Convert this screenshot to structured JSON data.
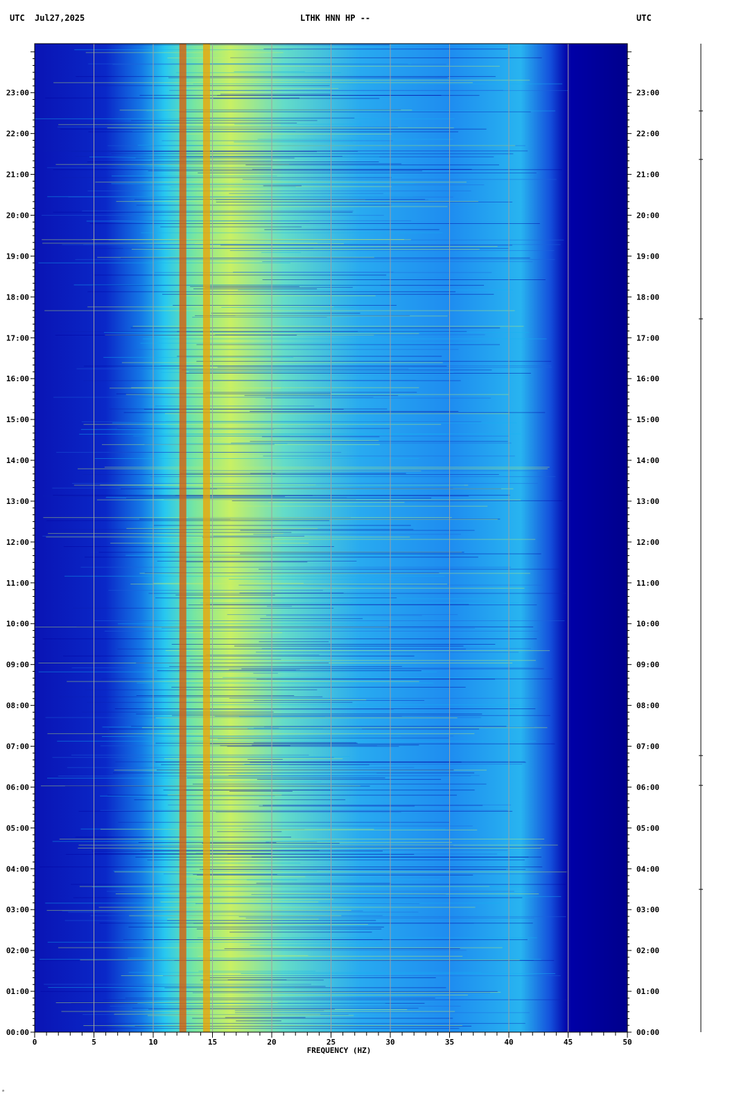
{
  "header": {
    "utc_left": "UTC",
    "date": "Jul27,2025",
    "station": "LTHK HNN HP --",
    "utc_right": "UTC"
  },
  "footer_mark": "ᵃ",
  "colors": {
    "background_low": "#00008c",
    "mid": "#00c8ff",
    "high": "#ffe000",
    "peak": "#d00000",
    "gridline": "#a0a0a0"
  },
  "chart_data": {
    "type": "heatmap",
    "title": "LTHK HNN HP --",
    "xlabel": "FREQUENCY (HZ)",
    "ylabel": "UTC",
    "xlim": [
      0,
      50
    ],
    "ylim_hours": [
      0,
      24
    ],
    "x_ticks": [
      "0",
      "5",
      "10",
      "15",
      "20",
      "25",
      "30",
      "35",
      "40",
      "45",
      "50"
    ],
    "x_tick_values": [
      0,
      5,
      10,
      15,
      20,
      25,
      30,
      35,
      40,
      45,
      50
    ],
    "y_ticks": [
      "00:00",
      "01:00",
      "02:00",
      "03:00",
      "04:00",
      "05:00",
      "06:00",
      "07:00",
      "08:00",
      "09:00",
      "10:00",
      "11:00",
      "12:00",
      "13:00",
      "14:00",
      "15:00",
      "16:00",
      "17:00",
      "18:00",
      "19:00",
      "20:00",
      "21:00",
      "22:00",
      "23:00"
    ],
    "y_tick_values": [
      0,
      1,
      2,
      3,
      4,
      5,
      6,
      7,
      8,
      9,
      10,
      11,
      12,
      13,
      14,
      15,
      16,
      17,
      18,
      19,
      20,
      21,
      22,
      23
    ],
    "grid": true,
    "colormap": "jet",
    "spectral_lines_hz": [
      12.5,
      14.5
    ],
    "energy_band_hz": [
      10,
      42
    ],
    "rolloff_hz": 45
  }
}
